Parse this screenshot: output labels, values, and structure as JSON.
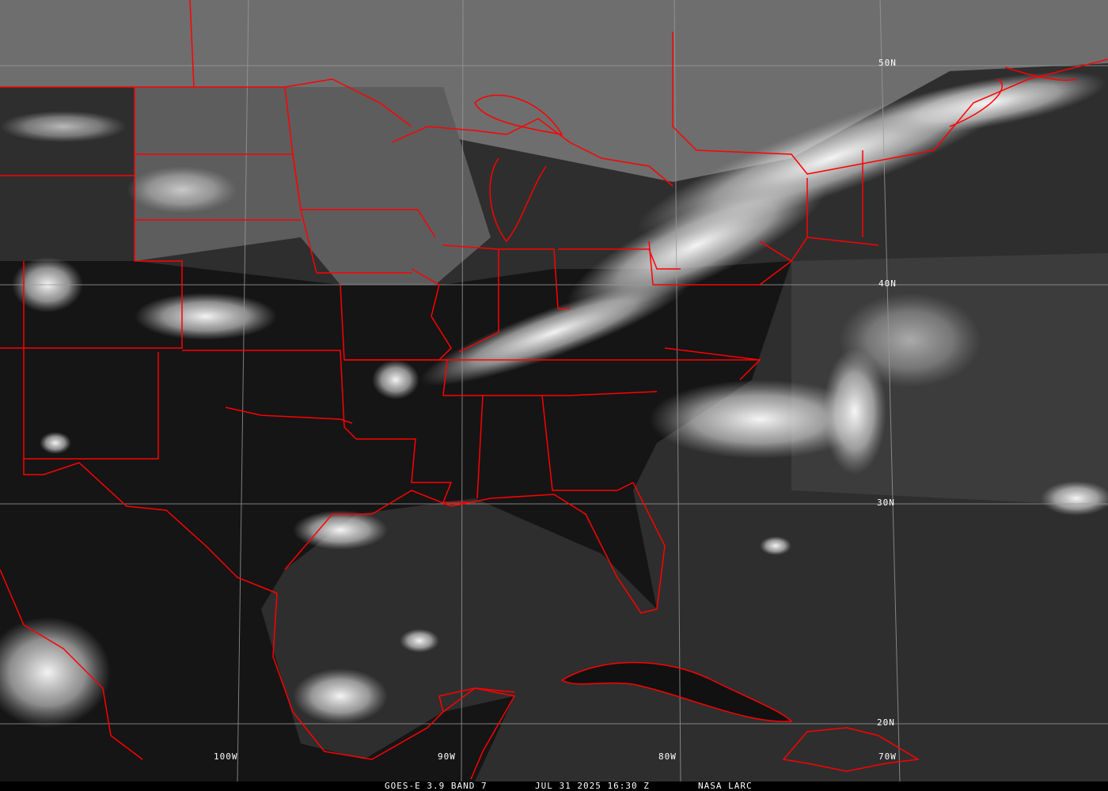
{
  "caption": {
    "satellite_band": "GOES-E 3.9 BAND 7",
    "datetime": "JUL 31 2025 16:30 Z",
    "source": "NASA LARC"
  },
  "grid_labels": {
    "lat_50": "50N",
    "lat_40": "40N",
    "lat_30": "30N",
    "lat_20": "20N",
    "lon_100": "100W",
    "lon_90": "90W",
    "lon_80": "80W",
    "lon_70": "70W"
  },
  "colors": {
    "borders": "#ff0000",
    "grid": "#9a9a9a",
    "text": "#ffffff"
  }
}
